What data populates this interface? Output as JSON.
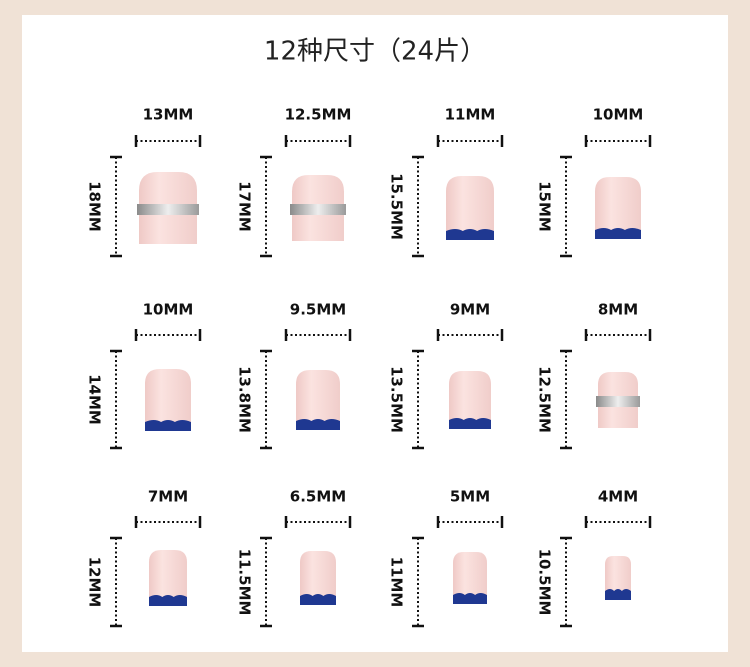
{
  "title": "12种尺寸（24片）",
  "items": [
    {
      "width": "13MM",
      "height": "18MM"
    },
    {
      "width": "12.5MM",
      "height": "17MM"
    },
    {
      "width": "11MM",
      "height": "15.5MM"
    },
    {
      "width": "10MM",
      "height": "15MM"
    },
    {
      "width": "10MM",
      "height": "14MM"
    },
    {
      "width": "9.5MM",
      "height": "13.8MM"
    },
    {
      "width": "9MM",
      "height": "13.5MM"
    },
    {
      "width": "8MM",
      "height": "12.5MM"
    },
    {
      "width": "7MM",
      "height": "12MM"
    },
    {
      "width": "6.5MM",
      "height": "11.5MM"
    },
    {
      "width": "5MM",
      "height": "11MM"
    },
    {
      "width": "4MM",
      "height": "10.5MM"
    }
  ]
}
